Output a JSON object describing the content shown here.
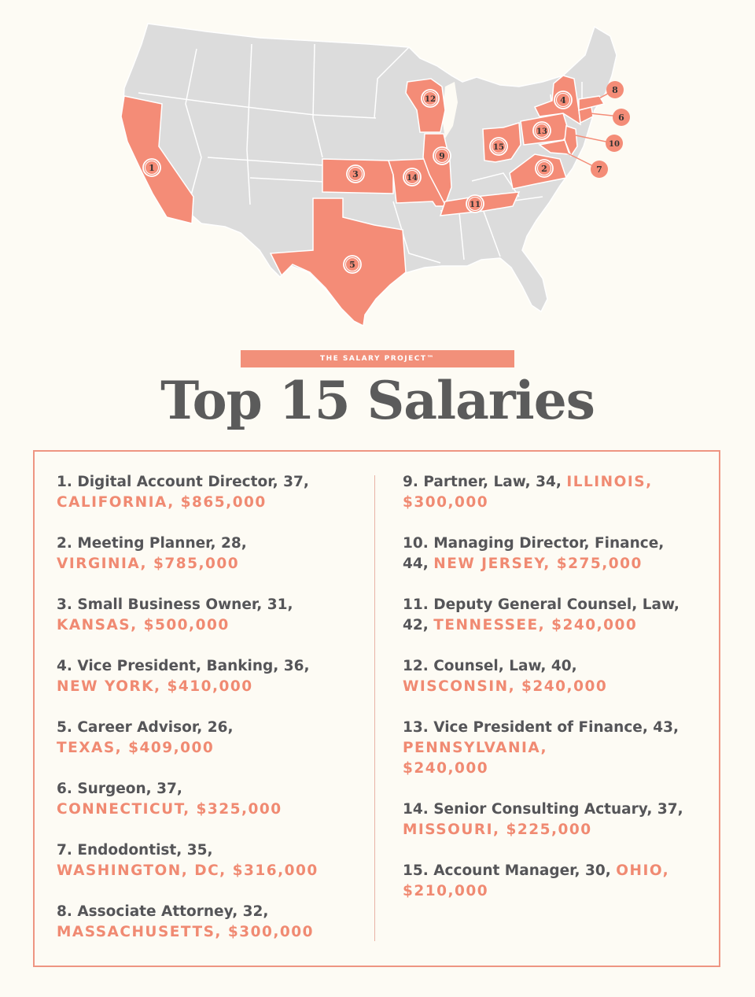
{
  "map": {
    "land_color": "#dcdcdc",
    "border_color": "#ffffff",
    "highlight_color": "#f48c77",
    "markers": [
      {
        "num": "1",
        "state": "California"
      },
      {
        "num": "2",
        "state": "Virginia"
      },
      {
        "num": "3",
        "state": "Kansas"
      },
      {
        "num": "4",
        "state": "New York"
      },
      {
        "num": "5",
        "state": "Texas"
      },
      {
        "num": "6",
        "state": "Connecticut"
      },
      {
        "num": "7",
        "state": "Washington, DC"
      },
      {
        "num": "8",
        "state": "Massachusetts"
      },
      {
        "num": "9",
        "state": "Illinois"
      },
      {
        "num": "10",
        "state": "New Jersey"
      },
      {
        "num": "11",
        "state": "Tennessee"
      },
      {
        "num": "12",
        "state": "Wisconsin"
      },
      {
        "num": "13",
        "state": "Pennsylvania"
      },
      {
        "num": "14",
        "state": "Missouri"
      },
      {
        "num": "15",
        "state": "Ohio"
      }
    ]
  },
  "banner": "THE SALARY PROJECT™",
  "title": "Top 15 Salaries",
  "colors": {
    "accent": "#f08a72",
    "text": "#555558",
    "background": "#fdfbf4"
  },
  "left_column": [
    {
      "line1": "1. Digital Account Director, 37,",
      "line2_prefix": "",
      "line2_hl": "CALIFORNIA, $865,000"
    },
    {
      "line1": "2. Meeting Planner, 28,",
      "line2_prefix": "",
      "line2_hl": "VIRGINIA, $785,000"
    },
    {
      "line1": "3. Small Business Owner, 31,",
      "line2_prefix": "",
      "line2_hl": "KANSAS, $500,000"
    },
    {
      "line1": "4. Vice President, Banking, 36,",
      "line2_prefix": "",
      "line2_hl": "NEW YORK, $410,000"
    },
    {
      "line1": "5. Career Advisor, 26,",
      "line2_prefix": "",
      "line2_hl": "TEXAS, $409,000"
    },
    {
      "line1": "6. Surgeon, 37,",
      "line2_prefix": "",
      "line2_hl": "CONNECTICUT, $325,000"
    },
    {
      "line1": "7. Endodontist, 35,",
      "line2_prefix": "",
      "line2_hl": "WASHINGTON, DC, $316,000"
    },
    {
      "line1": "8. Associate Attorney, 32,",
      "line2_prefix": "",
      "line2_hl": "MASSACHUSETTS, $300,000"
    }
  ],
  "right_column": [
    {
      "line1": "9. Partner, Law, 34, ",
      "line1_hl": "ILLINOIS,",
      "line2_hl": "$300,000"
    },
    {
      "line1": "10. Managing Director, Finance,",
      "line2_prefix": "44, ",
      "line2_hl": "NEW JERSEY, $275,000"
    },
    {
      "line1": "11. Deputy General Counsel, Law,",
      "line2_prefix": "42, ",
      "line2_hl": "TENNESSEE, $240,000"
    },
    {
      "line1": "12. Counsel, Law, 40,",
      "line2_prefix": "",
      "line2_hl": "WISCONSIN, $240,000"
    },
    {
      "line1": "13. Vice President of Finance, 43,",
      "line2_prefix": "",
      "line2_hl": "PENNSYLVANIA,",
      "line3_hl": "$240,000"
    },
    {
      "line1": "14. Senior Consulting Actuary, 37,",
      "line2_prefix": "",
      "line2_hl": "MISSOURI, $225,000"
    },
    {
      "line1": "15. Account Manager, 30, ",
      "line1_hl": "OHIO,",
      "line2_hl": "$210,000"
    }
  ]
}
